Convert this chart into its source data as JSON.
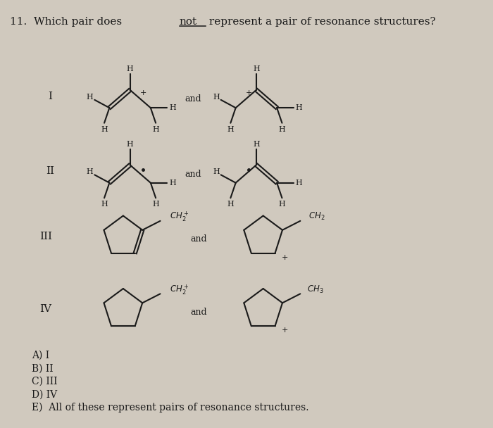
{
  "background_color": "#d0c9be",
  "text_color": "#1a1a1a",
  "answer_choices": [
    "A) I",
    "B) II",
    "C) III",
    "D) IV",
    "E)  All of these represent pairs of resonance structures."
  ]
}
